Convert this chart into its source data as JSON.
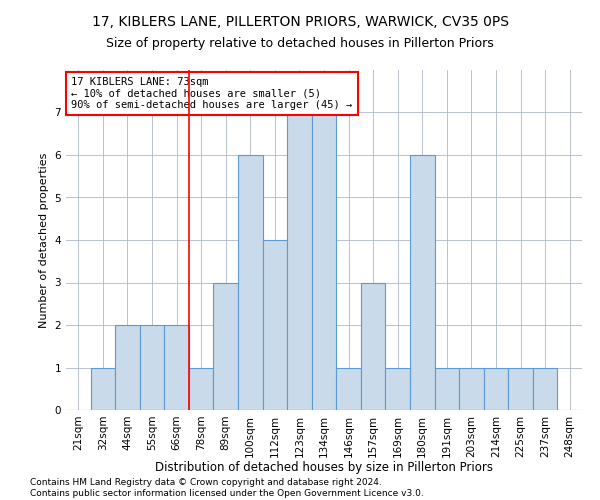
{
  "title": "17, KIBLERS LANE, PILLERTON PRIORS, WARWICK, CV35 0PS",
  "subtitle": "Size of property relative to detached houses in Pillerton Priors",
  "xlabel": "Distribution of detached houses by size in Pillerton Priors",
  "ylabel": "Number of detached properties",
  "categories": [
    "21sqm",
    "32sqm",
    "44sqm",
    "55sqm",
    "66sqm",
    "78sqm",
    "89sqm",
    "100sqm",
    "112sqm",
    "123sqm",
    "134sqm",
    "146sqm",
    "157sqm",
    "169sqm",
    "180sqm",
    "191sqm",
    "203sqm",
    "214sqm",
    "225sqm",
    "237sqm",
    "248sqm"
  ],
  "values": [
    0,
    1,
    2,
    2,
    2,
    1,
    3,
    6,
    4,
    7,
    7,
    1,
    3,
    1,
    6,
    1,
    1,
    1,
    1,
    1,
    0
  ],
  "bar_color": "#c9daea",
  "bar_edge_color": "#5b9bd5",
  "bar_linewidth": 0.8,
  "annotation_text": "17 KIBLERS LANE: 73sqm\n← 10% of detached houses are smaller (5)\n90% of semi-detached houses are larger (45) →",
  "annotation_box_color": "white",
  "annotation_box_edge_color": "red",
  "vline_x_index": 5,
  "vline_color": "red",
  "vline_linewidth": 1.2,
  "ylim": [
    0,
    8
  ],
  "yticks": [
    0,
    1,
    2,
    3,
    4,
    5,
    6,
    7
  ],
  "grid_color": "#b0b8c8",
  "background_color": "white",
  "footer_line1": "Contains HM Land Registry data © Crown copyright and database right 2024.",
  "footer_line2": "Contains public sector information licensed under the Open Government Licence v3.0.",
  "title_fontsize": 10,
  "subtitle_fontsize": 9,
  "xlabel_fontsize": 8.5,
  "ylabel_fontsize": 8,
  "tick_fontsize": 7.5,
  "annotation_fontsize": 7.5,
  "footer_fontsize": 6.5
}
